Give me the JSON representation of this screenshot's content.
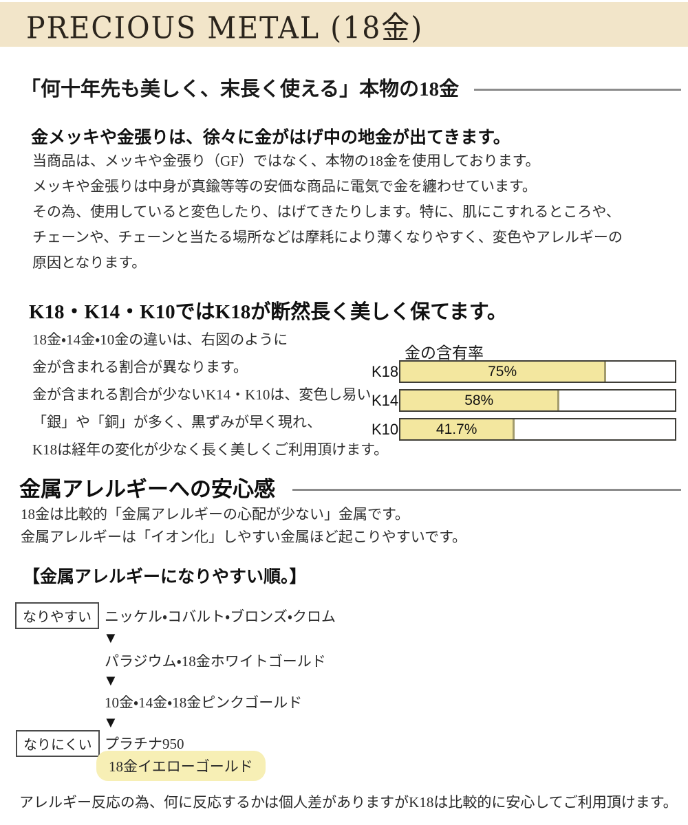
{
  "header": {
    "title": "PRECIOUS METAL (18金)"
  },
  "section1": {
    "heading": "「何十年先も美しく、末長く使える」本物の18金",
    "subheading": "金メッキや金張りは、徐々に金がはげ中の地金が出てきます。",
    "lines": [
      "当商品は、メッキや金張り（GF）ではなく、本物の18金を使用しております。",
      "メッキや金張りは中身が真鍮等等の安価な商品に電気で金を纏わせています。",
      "その為、使用していると変色したり、はげてきたりします。特に、肌にこすれるところや、",
      "チェーンや、チェーンと当たる場所などは摩耗により薄くなりやすく、変色やアレルギーの",
      "原因となります。"
    ]
  },
  "section2": {
    "heading": "K18・K14・K10ではK18が断然長く美しく保てます。",
    "lines": [
      "18金・14金・10金の違いは、右図のように",
      "金が含まれる割合が異なります。",
      "金が含まれる割合が少ないK14・K10は、変色し易い",
      "「銀」や「銅」が多く、黒ずみが早く現れ、",
      "K18は経年の変化が少なく長く美しくご利用頂けます。"
    ]
  },
  "chart_data": {
    "type": "bar",
    "orientation": "horizontal",
    "title": "金の含有率",
    "categories": [
      "K18",
      "K14",
      "K10"
    ],
    "values": [
      75,
      58,
      41.7
    ],
    "value_labels": [
      "75%",
      "58%",
      "41.7%"
    ],
    "xlim": [
      0,
      100
    ],
    "bar_fill_color": "#f3e79f",
    "bar_border_color": "#3f3e38",
    "legend": "none",
    "grid": false
  },
  "section3": {
    "heading": "金属アレルギーへの安心感",
    "lines": [
      "18金は比較的「金属アレルギーの心配が少ない」金属です。",
      "金属アレルギーは「イオン化」しやすい金属ほど起こりやすいです。"
    ],
    "subheading": "【金属アレルギーになりやすい順。】",
    "ranking": {
      "easy_label": "なりやすい",
      "hard_label": "なりにくい",
      "arrow": "▼",
      "items": [
        "ニッケル・コバルト・ブロンズ・クロム",
        "パラジウム・18金ホワイトゴールド",
        "10金・14金・18金ピンクゴールド",
        "プラチナ950"
      ],
      "highlight": "18金イエローゴールド"
    },
    "note": "アレルギー反応の為、何に反応するかは個人差がありますがK18は比較的に安心してご利用頂けます。"
  },
  "colors": {
    "band_bg": "#f2e5c9",
    "rule_gray": "#8c8c8c",
    "highlight_pill": "#f7efb5",
    "bar_fill": "#f3e79f",
    "bar_fill_edge": "#a29b6d"
  }
}
